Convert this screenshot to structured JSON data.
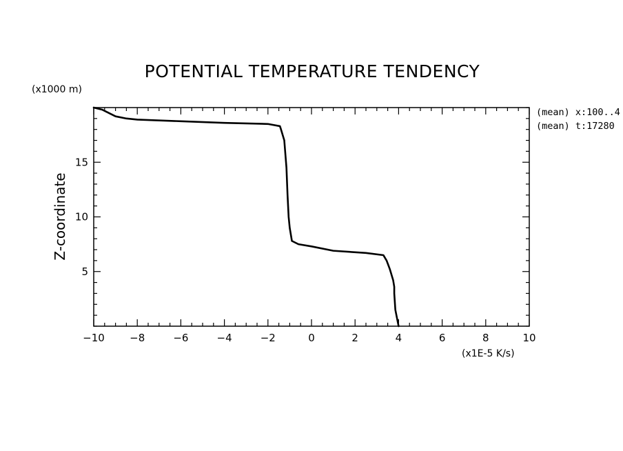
{
  "chart_data": {
    "type": "line",
    "title": "POTENTIAL TEMPERATURE TENDENCY",
    "xlabel": "",
    "ylabel": "Z-coordinate",
    "x_unit_label": "(x1E-5 K/s)",
    "y_unit_label": "(x1000 m)",
    "xlim": [
      -10,
      10
    ],
    "ylim": [
      0,
      20
    ],
    "x_ticks": [
      -10,
      -8,
      -6,
      -4,
      -2,
      0,
      2,
      4,
      6,
      8,
      10
    ],
    "x_tick_labels": [
      "-10",
      "-8",
      "-6",
      "-4",
      "-2",
      "0",
      "2",
      "4",
      "6",
      "8",
      "10"
    ],
    "x_minor_step": 0.5,
    "y_ticks": [
      5,
      10,
      15
    ],
    "y_tick_labels": [
      "5",
      "10",
      "15"
    ],
    "y_minor_step": 1,
    "grid": false,
    "annotations": [
      "(mean) x:100..4",
      "(mean) t:17280"
    ],
    "color": "#000000",
    "series": [
      {
        "x": [
          4.0,
          3.95,
          3.85,
          3.8,
          3.8,
          3.75,
          3.6,
          3.45,
          3.3,
          2.5,
          1.0,
          0.0,
          -0.6,
          -0.9,
          -1.0,
          -1.05,
          -1.1,
          -1.15,
          -1.25,
          -1.4,
          -1.45,
          -2.0,
          -4.0,
          -6.0,
          -8.0,
          -8.5,
          -9.0,
          -9.3,
          -9.6,
          -10.0
        ],
        "y": [
          0.0,
          0.5,
          1.5,
          3.0,
          3.6,
          4.2,
          5.2,
          6.0,
          6.5,
          6.7,
          6.9,
          7.3,
          7.5,
          7.8,
          9.0,
          10.0,
          12.0,
          14.5,
          17.0,
          18.0,
          18.3,
          18.5,
          18.6,
          18.75,
          18.9,
          19.0,
          19.2,
          19.5,
          19.8,
          20.0
        ]
      }
    ]
  }
}
